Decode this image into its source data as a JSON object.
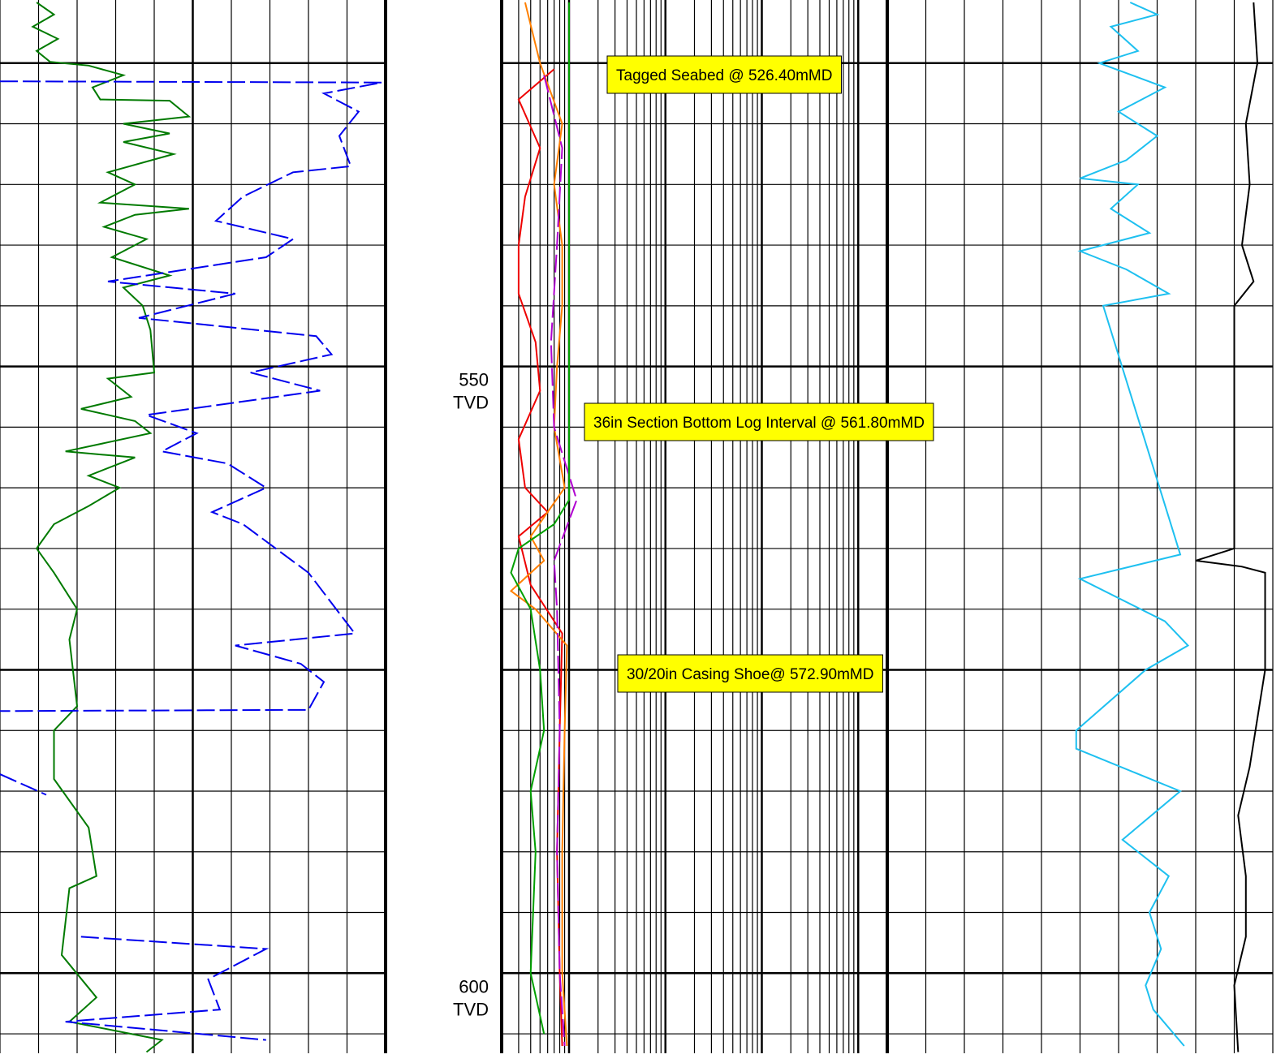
{
  "chart_data": {
    "type": "well_log",
    "ylim": [
      519.8,
      606.6
    ],
    "ylabel": "TVD",
    "yticks": [
      550,
      600
    ],
    "ygrid": [
      525,
      530,
      535,
      540,
      545,
      550,
      555,
      560,
      565,
      570,
      575,
      580,
      585,
      590,
      595,
      600,
      605
    ],
    "annotations": [
      "Tagged Seabed @ 526.40mMD",
      "36in Section Bottom Log Interval @ 561.80mMD",
      "30/20in Casing Shoe@ 572.90mMD"
    ],
    "annotation_color": "#ffff00",
    "tracks": [
      {
        "xlim": [
          0,
          10
        ],
        "log": false,
        "series": [
          {
            "color": "#007a00",
            "dash": false,
            "depth": [
              520,
              521,
              522,
              523,
              524,
              524.9,
              525.2,
              526,
              527,
              528,
              528.1,
              529.4,
              530,
              530.8,
              531.5,
              532.5,
              534,
              535,
              536.5,
              537,
              537.5,
              538.5,
              539.5,
              541,
              542.5,
              543.5,
              545,
              547,
              550.5,
              551,
              552.5,
              553.5,
              554.5,
              555.5,
              557,
              557.5,
              559,
              560,
              561.5,
              563,
              565,
              567,
              570,
              572.5,
              578,
              580,
              584,
              588,
              592,
              593,
              598.5,
              602,
              604,
              605.5,
              606.5
            ],
            "values": [
              0.95,
              1.4,
              0.85,
              1.5,
              0.95,
              1.3,
              2.3,
              3.2,
              2.4,
              2.6,
              4.4,
              4.9,
              3.2,
              4.4,
              3.2,
              4.5,
              2.8,
              3.5,
              2.6,
              4.9,
              3.5,
              2.7,
              3.8,
              2.9,
              4.4,
              3.2,
              3.7,
              3.9,
              4.0,
              2.8,
              3.4,
              2.1,
              3.5,
              3.9,
              1.7,
              3.5,
              2.3,
              3.1,
              2.3,
              1.4,
              0.95,
              1.4,
              2.0,
              1.8,
              2.0,
              1.4,
              1.4,
              2.3,
              2.5,
              1.8,
              1.6,
              2.5,
              1.8,
              4.2,
              3.8
            ]
          },
          {
            "color": "#0000ee",
            "dash": true,
            "depth": [
              526.5,
              526.6,
              527.5,
              529,
              531,
              533.5,
              534,
              536,
              538,
              539.5,
              541,
              543,
              544,
              546,
              547.5,
              549,
              550.5,
              552,
              554,
              555.5,
              557,
              558,
              560,
              562,
              563,
              567,
              572,
              573,
              574.5,
              576,
              578.3,
              578.4,
              null,
              583.6,
              585.3,
              null,
              597,
              598,
              600.5,
              603,
              604,
              605.5
            ],
            "values": [
              0,
              9.9,
              8.4,
              9.3,
              8.8,
              9.1,
              7.6,
              6.3,
              5.6,
              7.6,
              6.9,
              2.8,
              6.1,
              3.6,
              8.2,
              8.6,
              6.5,
              8.3,
              3.8,
              5.1,
              4.2,
              5.9,
              6.9,
              5.5,
              6.3,
              8.0,
              9.2,
              6.1,
              7.8,
              8.4,
              8.0,
              0,
              null,
              0,
              1.2,
              null,
              2.1,
              6.9,
              5.4,
              5.7,
              1.7,
              6.9
            ]
          }
        ]
      },
      {
        "xlim": [
          0.2,
          2000
        ],
        "log": true,
        "series": [
          {
            "color": "#ee0000",
            "dash": false,
            "depth": [
              525.5,
              528,
              532,
              536,
              540,
              544,
              548,
              552,
              556,
              560,
              562,
              564,
              568,
              572,
              580,
              590,
              600,
              606
            ],
            "values": [
              0.7,
              0.3,
              0.5,
              0.35,
              0.3,
              0.3,
              0.45,
              0.5,
              0.3,
              0.35,
              0.6,
              0.3,
              0.4,
              0.85,
              0.8,
              0.75,
              0.8,
              0.85
            ]
          },
          {
            "color": "#ff7f00",
            "dash": false,
            "depth": [
              520,
              525,
              530,
              535,
              540,
              545,
              550,
              555,
              560,
              564,
              566,
              568.5,
              570,
              573,
              580,
              590,
              600,
              606
            ],
            "values": [
              0.35,
              0.5,
              0.85,
              0.7,
              0.85,
              0.85,
              0.75,
              0.7,
              0.9,
              0.4,
              0.55,
              0.25,
              0.45,
              0.95,
              0.9,
              0.85,
              0.85,
              0.95
            ]
          },
          {
            "color": "#b000d0",
            "dash": true,
            "depth": [
              526,
              532,
              540,
              548,
              555,
              561,
              566,
              570,
              580,
              590,
              600,
              606
            ],
            "values": [
              0.55,
              0.85,
              0.75,
              0.65,
              0.7,
              1.2,
              0.7,
              0.75,
              0.8,
              0.75,
              0.8,
              0.9
            ]
          },
          {
            "color": "#00a000",
            "dash": false,
            "depth": [
              520,
              540,
              561,
              563,
              565,
              567,
              570,
              575,
              580,
              585,
              590,
              600,
              605
            ],
            "values": [
              1.0,
              1.0,
              1.0,
              0.7,
              0.3,
              0.25,
              0.4,
              0.5,
              0.55,
              0.4,
              0.45,
              0.4,
              0.55
            ]
          }
        ]
      },
      {
        "xlim": [
          0,
          10
        ],
        "log": false,
        "series": [
          {
            "color": "#1ec0f0",
            "dash": false,
            "depth": [
              520,
              521,
              522,
              524,
              525,
              527,
              529,
              531,
              533,
              534.5,
              535,
              537,
              539,
              540.5,
              542,
              544,
              545,
              565.5,
              567.5,
              571,
              573,
              575,
              580,
              581.5,
              585,
              589,
              592,
              595,
              598,
              601,
              603,
              606
            ],
            "values": [
              6.3,
              7.0,
              5.8,
              6.5,
              5.5,
              7.2,
              6.0,
              7.0,
              6.2,
              5.0,
              6.5,
              5.8,
              6.8,
              5.0,
              6.2,
              7.3,
              5.6,
              7.6,
              5.0,
              7.2,
              7.8,
              6.7,
              4.9,
              4.9,
              7.6,
              6.1,
              7.3,
              6.8,
              7.1,
              6.7,
              6.9,
              7.7
            ]
          },
          {
            "color": "#000000",
            "dash": false,
            "depth": [
              520,
              525,
              530,
              535,
              540,
              543,
              545,
              565,
              566,
              566.5,
              567,
              575,
              583,
              587,
              592,
              597,
              601,
              606.5
            ],
            "values": [
              9.5,
              9.6,
              9.3,
              9.4,
              9.2,
              9.5,
              9.0,
              9.0,
              8.0,
              9.2,
              9.8,
              9.8,
              9.4,
              9.1,
              9.3,
              9.3,
              9.0,
              9.1
            ]
          }
        ]
      }
    ]
  }
}
